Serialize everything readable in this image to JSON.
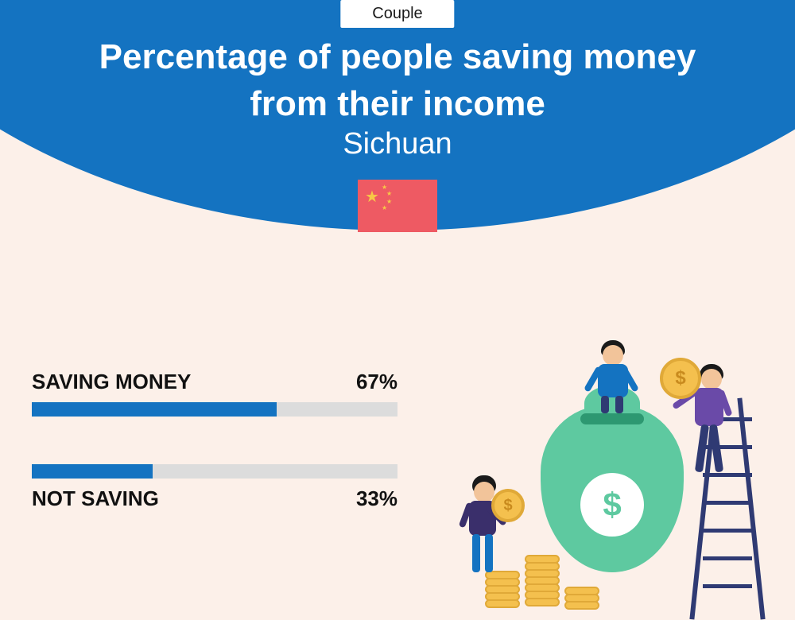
{
  "header": {
    "pill_label": "Couple",
    "title_line1": "Percentage of people saving money",
    "title_line2": "from their income",
    "region": "Sichuan",
    "accent_color": "#1473c1"
  },
  "flag": {
    "country": "China",
    "bg_color": "#ee5a63",
    "star_color": "#f7c846"
  },
  "bars": {
    "track_color": "#dcdcdc",
    "fill_color": "#1473c1",
    "items": [
      {
        "label": "SAVING MONEY",
        "value": 67,
        "value_label": "67%",
        "label_position": "above"
      },
      {
        "label": "NOT SAVING",
        "value": 33,
        "value_label": "33%",
        "label_position": "below"
      }
    ]
  },
  "illustration": {
    "bag_color": "#5ec9a0",
    "bag_inner": "#2d9871",
    "coin_color": "#f4c04e",
    "coin_border": "#e0a938",
    "ladder_color": "#2f3a73",
    "skin": "#f2c49a",
    "person1_shirt": "#1473c1",
    "person1_pants": "#2f3a73",
    "person2_shirt": "#6a4aa8",
    "person2_pants": "#2f3a73",
    "person3_shirt": "#3a2f6b",
    "person3_pants": "#1473c1"
  },
  "background_color": "#fcf0e9"
}
